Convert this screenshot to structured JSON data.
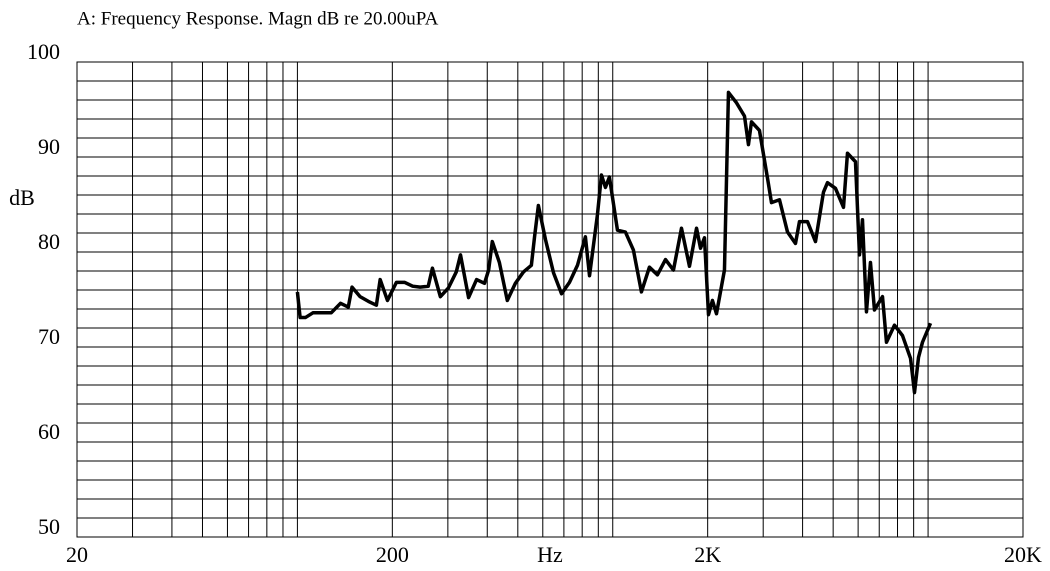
{
  "chart_data": {
    "type": "line",
    "title": "A: Frequency Response. Magn dB re 20.00uPA",
    "x_label": "Hz",
    "y_label": "dB",
    "log_x": true,
    "grid": true,
    "xlim": [
      20,
      20000
    ],
    "ylim": [
      50,
      100
    ],
    "xticks": [
      20,
      200,
      {
        "value": 2000,
        "label": "2K"
      },
      {
        "value": 20000,
        "label": "20K"
      }
    ],
    "yticks": [
      50,
      60,
      70,
      80,
      90,
      100
    ],
    "x_minor_ticks": [
      30,
      40,
      50,
      60,
      70,
      80,
      90,
      100,
      300,
      400,
      500,
      600,
      700,
      800,
      900,
      1000,
      3000,
      4000,
      5000,
      6000,
      7000,
      8000,
      9000,
      10000
    ],
    "y_minor_ticks": [
      52,
      54,
      56,
      58,
      62,
      64,
      66,
      68,
      72,
      74,
      76,
      78,
      82,
      84,
      86,
      88,
      92,
      94,
      96,
      98
    ],
    "x": [
      100,
      102,
      106,
      112,
      120,
      128,
      137,
      145,
      149,
      158,
      168,
      178,
      183,
      193,
      206,
      219,
      232,
      245,
      260,
      268,
      284,
      301,
      319,
      329,
      349,
      370,
      392,
      404,
      415,
      437,
      463,
      491,
      521,
      552,
      565,
      581,
      612,
      649,
      688,
      729,
      773,
      819,
      844,
      894,
      921,
      948,
      976,
      1035,
      1097,
      1163,
      1233,
      1307,
      1386,
      1470,
      1558,
      1652,
      1751,
      1844,
      1898,
      1954,
      2012,
      2071,
      2133,
      2261,
      2328,
      2469,
      2617,
      2694,
      2754,
      2919,
      3095,
      3187,
      3379,
      3583,
      3798,
      3910,
      4146,
      4395,
      4659,
      4797,
      5085,
      5392,
      5551,
      5886,
      6060,
      6194,
      6377,
      6566,
      6761,
      7169,
      7380,
      7825,
      8296,
      8799,
      9056,
      9325,
      9600,
      10180
    ],
    "series": [
      {
        "color": "#000000",
        "values": [
          75.8,
          73.1,
          73.1,
          73.6,
          73.6,
          73.6,
          74.6,
          74.2,
          76.3,
          75.3,
          74.8,
          74.4,
          77.1,
          74.9,
          76.8,
          76.8,
          76.4,
          76.3,
          76.4,
          78.3,
          75.3,
          76.2,
          77.9,
          79.7,
          75.2,
          77.1,
          76.7,
          78.1,
          81.1,
          78.9,
          74.9,
          76.7,
          77.9,
          78.6,
          81.6,
          84.9,
          81.3,
          77.8,
          75.6,
          76.8,
          78.6,
          81.6,
          77.5,
          83.9,
          88.1,
          86.8,
          87.9,
          82.3,
          82.1,
          80.2,
          75.8,
          78.4,
          77.6,
          79.2,
          78.1,
          82.5,
          78.5,
          82.5,
          80.4,
          81.5,
          73.4,
          74.9,
          73.5,
          78.1,
          96.8,
          95.7,
          94.3,
          91.3,
          93.7,
          92.8,
          87.8,
          85.2,
          85.5,
          82.1,
          80.9,
          83.2,
          83.2,
          81.1,
          86.3,
          87.3,
          86.7,
          84.7,
          90.4,
          89.5,
          79.7,
          83.4,
          73.7,
          78.9,
          73.9,
          75.3,
          70.5,
          72.3,
          71.2,
          68.8,
          65.2,
          68.9,
          70.5,
          72.5
        ]
      }
    ]
  }
}
